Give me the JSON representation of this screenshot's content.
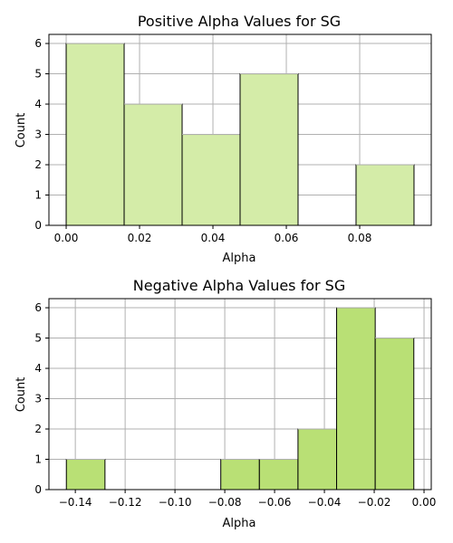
{
  "chart_data": [
    {
      "type": "bar",
      "title": "Positive Alpha Values for SG",
      "xlabel": "Alpha",
      "ylabel": "Count",
      "bar_color": "#d4eca8",
      "bin_edges": [
        0.0,
        0.0158,
        0.0316,
        0.0474,
        0.0632,
        0.079,
        0.0948
      ],
      "values": [
        6,
        4,
        3,
        5,
        0,
        2
      ],
      "xlim": [
        -0.0047,
        0.0995
      ],
      "ylim": [
        0,
        6.3
      ],
      "xticks": [
        0.0,
        0.02,
        0.04,
        0.06,
        0.08
      ],
      "xtick_labels": [
        "0.00",
        "0.02",
        "0.04",
        "0.06",
        "0.08"
      ],
      "yticks": [
        0,
        1,
        2,
        3,
        4,
        5,
        6
      ],
      "ytick_labels": [
        "0",
        "1",
        "2",
        "3",
        "4",
        "5",
        "6"
      ],
      "grid": true
    },
    {
      "type": "bar",
      "title": "Negative Alpha Values for SG",
      "xlabel": "Alpha",
      "ylabel": "Count",
      "bar_color": "#b9e075",
      "bin_edges": [
        -0.1436,
        -0.1281,
        -0.1126,
        -0.0971,
        -0.0816,
        -0.0661,
        -0.0506,
        -0.0351,
        -0.0196,
        -0.0041
      ],
      "values": [
        1,
        0,
        0,
        0,
        1,
        1,
        2,
        6,
        5
      ],
      "xlim": [
        -0.1506,
        0.0029
      ],
      "ylim": [
        0,
        6.3
      ],
      "xticks": [
        -0.14,
        -0.12,
        -0.1,
        -0.08,
        -0.06,
        -0.04,
        -0.02,
        0.0
      ],
      "xtick_labels": [
        "−0.14",
        "−0.12",
        "−0.10",
        "−0.08",
        "−0.06",
        "−0.04",
        "−0.02",
        "0.00"
      ],
      "yticks": [
        0,
        1,
        2,
        3,
        4,
        5,
        6
      ],
      "ytick_labels": [
        "0",
        "1",
        "2",
        "3",
        "4",
        "5",
        "6"
      ],
      "grid": true
    }
  ]
}
